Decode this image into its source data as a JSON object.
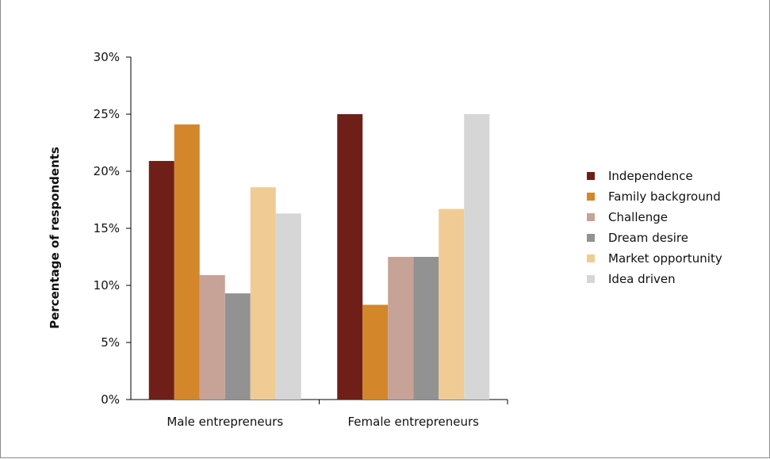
{
  "chart_data": {
    "type": "bar",
    "title": "",
    "xlabel": "",
    "ylabel": "Percentage of respondents",
    "ylim": [
      0,
      30
    ],
    "yticks": [
      "0%",
      "5%",
      "10%",
      "15%",
      "20%",
      "25%",
      "30%"
    ],
    "categories": [
      "Male entrepreneurs",
      "Female entrepreneurs"
    ],
    "legend_position": "right",
    "grid": false,
    "series": [
      {
        "name": "Independence",
        "color": "#6f1f17",
        "values": [
          20.9,
          25.0
        ]
      },
      {
        "name": "Family background",
        "color": "#d3872a",
        "values": [
          24.1,
          8.3
        ]
      },
      {
        "name": "Challenge",
        "color": "#c7a296",
        "values": [
          10.9,
          12.5
        ]
      },
      {
        "name": "Dream desire",
        "color": "#929292",
        "values": [
          9.3,
          12.5
        ]
      },
      {
        "name": "Market opportunity",
        "color": "#f0cc94",
        "values": [
          18.6,
          16.7
        ]
      },
      {
        "name": "Idea driven",
        "color": "#d6d6d6",
        "values": [
          16.3,
          25.0
        ]
      }
    ]
  }
}
